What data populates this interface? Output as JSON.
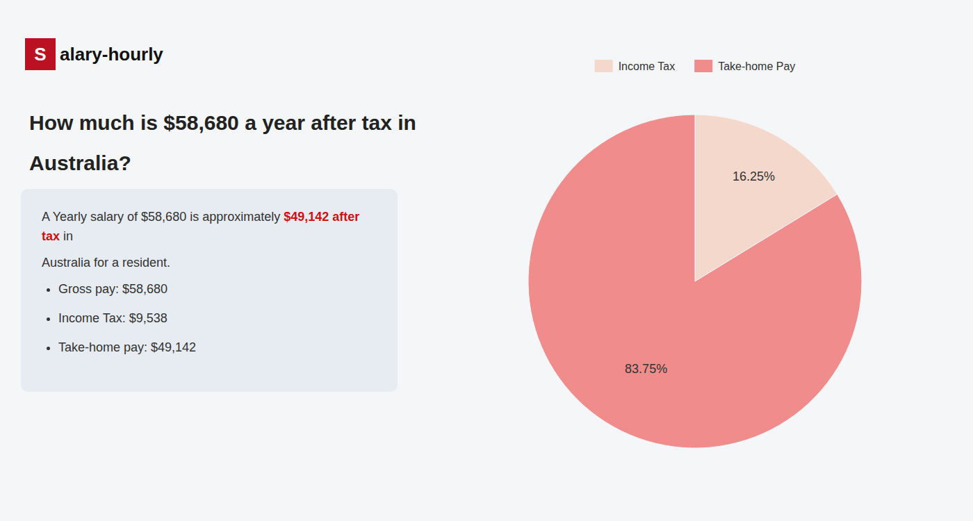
{
  "chart_data": {
    "type": "pie",
    "title": [
      "How much is $58,680 a year after tax in",
      "Australia?"
    ],
    "annotations": [
      "S",
      "alary-hourly",
      "A Yearly salary of $58,680 is approximately ",
      "$49,142 after tax",
      " in",
      "Australia for a resident.",
      "Gross pay: $58,680",
      "Income Tax: $9,538",
      "Take-home pay: $49,142"
    ],
    "categories": [
      "Income Tax",
      "Take-home Pay"
    ],
    "values": [
      16.25,
      83.75
    ],
    "value_labels": [
      "16.25%",
      "83.75%"
    ],
    "colors": [
      "#f5d8cc",
      "#f08c8c"
    ],
    "data_labels": true,
    "legend": "top"
  }
}
